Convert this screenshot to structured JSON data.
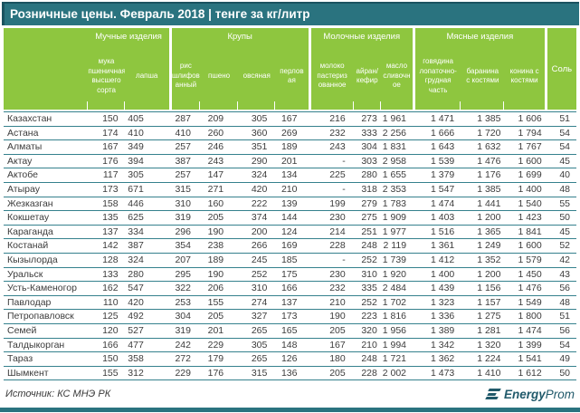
{
  "title": "Розничные цены. Февраль 2018 | тенге за кг/литр",
  "table": {
    "groups": [
      {
        "label": "Мучные изделия",
        "columns": [
          "мука\nпшеничная\nвысшего\nсорта",
          "лапша"
        ]
      },
      {
        "label": "Крупы",
        "columns": [
          "рис\nшлифов\nанный",
          "пшено",
          "овсяная",
          "перлов\nая"
        ]
      },
      {
        "label": "Молочные изделия",
        "columns": [
          "молоко\nпастериз\nованное",
          "айран/\nкефир",
          "масло\nсливочн\nое"
        ]
      },
      {
        "label": "Мясные изделия",
        "columns": [
          "говядина\nлопаточно-\nгрудная\nчасть",
          "баранина\nс костями",
          "конина с\nкостями"
        ]
      },
      {
        "label": "Соль",
        "columns": []
      }
    ],
    "rows": [
      {
        "city": "Казахстан",
        "values": [
          "150",
          "405",
          "287",
          "209",
          "305",
          "167",
          "216",
          "273",
          "1 961",
          "1 471",
          "1 385",
          "1 606",
          "51"
        ]
      },
      {
        "city": "Астана",
        "values": [
          "174",
          "410",
          "410",
          "260",
          "360",
          "269",
          "232",
          "333",
          "2 256",
          "1 666",
          "1 720",
          "1 794",
          "54"
        ]
      },
      {
        "city": "Алматы",
        "values": [
          "167",
          "349",
          "257",
          "246",
          "351",
          "189",
          "243",
          "304",
          "1 831",
          "1 643",
          "1 632",
          "1 767",
          "54"
        ]
      },
      {
        "city": "Актау",
        "values": [
          "176",
          "394",
          "387",
          "243",
          "290",
          "201",
          "-",
          "303",
          "2 958",
          "1 539",
          "1 476",
          "1 600",
          "45"
        ]
      },
      {
        "city": "Актобе",
        "values": [
          "117",
          "305",
          "257",
          "147",
          "324",
          "134",
          "225",
          "280",
          "1 655",
          "1 379",
          "1 176",
          "1 699",
          "40"
        ]
      },
      {
        "city": "Атырау",
        "values": [
          "173",
          "671",
          "315",
          "271",
          "420",
          "210",
          "-",
          "318",
          "2 353",
          "1 547",
          "1 385",
          "1 400",
          "48"
        ]
      },
      {
        "city": "Жезказган",
        "values": [
          "158",
          "446",
          "310",
          "160",
          "222",
          "139",
          "199",
          "279",
          "1 783",
          "1 474",
          "1 441",
          "1 540",
          "55"
        ]
      },
      {
        "city": "Кокшетау",
        "values": [
          "135",
          "625",
          "319",
          "205",
          "374",
          "144",
          "230",
          "275",
          "1 909",
          "1 403",
          "1 200",
          "1 423",
          "50"
        ]
      },
      {
        "city": "Караганда",
        "values": [
          "137",
          "334",
          "296",
          "190",
          "200",
          "124",
          "214",
          "251",
          "1 977",
          "1 516",
          "1 365",
          "1 841",
          "45"
        ]
      },
      {
        "city": "Костанай",
        "values": [
          "142",
          "387",
          "354",
          "238",
          "266",
          "169",
          "228",
          "248",
          "2 119",
          "1 361",
          "1 249",
          "1 600",
          "52"
        ]
      },
      {
        "city": "Кызылорда",
        "values": [
          "128",
          "324",
          "207",
          "189",
          "245",
          "185",
          "-",
          "252",
          "1 739",
          "1 412",
          "1 352",
          "1 579",
          "42"
        ]
      },
      {
        "city": "Уральск",
        "values": [
          "133",
          "280",
          "295",
          "190",
          "252",
          "175",
          "230",
          "310",
          "1 920",
          "1 400",
          "1 200",
          "1 450",
          "43"
        ]
      },
      {
        "city": "Усть-Каменогор",
        "values": [
          "162",
          "547",
          "322",
          "206",
          "310",
          "166",
          "232",
          "335",
          "2 484",
          "1 439",
          "1 156",
          "1 476",
          "56"
        ]
      },
      {
        "city": "Павлодар",
        "values": [
          "110",
          "420",
          "253",
          "155",
          "274",
          "137",
          "210",
          "252",
          "1 702",
          "1 323",
          "1 157",
          "1 549",
          "48"
        ]
      },
      {
        "city": "Петропавловск",
        "values": [
          "125",
          "492",
          "304",
          "205",
          "327",
          "173",
          "190",
          "223",
          "1 816",
          "1 336",
          "1 275",
          "1 800",
          "51"
        ]
      },
      {
        "city": "Семей",
        "values": [
          "120",
          "527",
          "319",
          "201",
          "265",
          "165",
          "205",
          "320",
          "1 956",
          "1 389",
          "1 281",
          "1 474",
          "56"
        ]
      },
      {
        "city": "Талдыкорган",
        "values": [
          "166",
          "477",
          "242",
          "229",
          "305",
          "148",
          "167",
          "210",
          "1 994",
          "1 342",
          "1 320",
          "1 399",
          "54"
        ]
      },
      {
        "city": "Тараз",
        "values": [
          "150",
          "358",
          "272",
          "179",
          "265",
          "126",
          "180",
          "248",
          "1 721",
          "1 362",
          "1 224",
          "1 541",
          "49"
        ]
      },
      {
        "city": "Шымкент",
        "values": [
          "155",
          "312",
          "229",
          "176",
          "315",
          "136",
          "205",
          "228",
          "2 002",
          "1 473",
          "1 410",
          "1 612",
          "50"
        ]
      }
    ]
  },
  "footer": {
    "source": "Источник: КС МНЭ РК",
    "logo_bold": "Energy",
    "logo_light": "Prom"
  },
  "colors": {
    "teal": "#2a737f",
    "teal_dark": "#1b5360",
    "green": "#8ec63f",
    "grid_line": "#35818d",
    "logo": "#215a6b"
  }
}
